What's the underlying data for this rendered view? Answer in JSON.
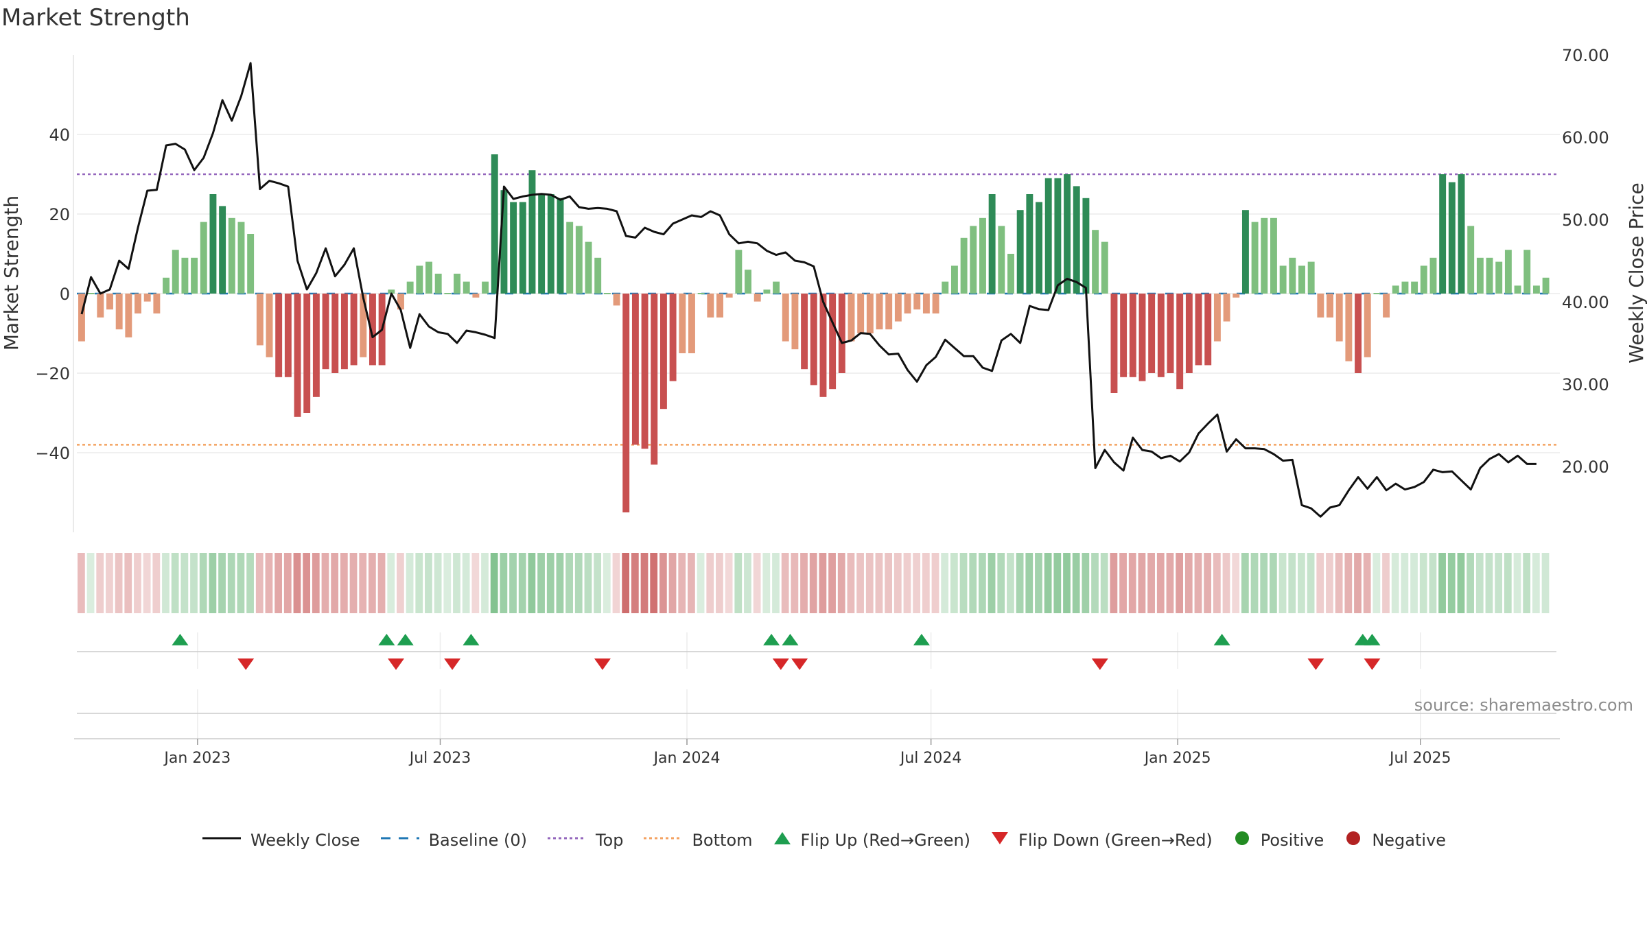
{
  "chart_data": {
    "type": "bar",
    "title": "Market Strength",
    "ylabel_left": "Market Strength",
    "ylabel_right": "Weekly Close Price",
    "source": "source: sharemaestro.com",
    "y_left_range": [
      -60,
      60
    ],
    "y_left_ticks": [
      40,
      20,
      0,
      -20,
      -40
    ],
    "y_left_tick_labels": [
      "40",
      "20",
      "0",
      "−20",
      "−40"
    ],
    "y_right_range": [
      12,
      70
    ],
    "y_right_ticks": [
      70,
      60,
      50,
      40,
      30,
      20
    ],
    "y_right_tick_labels": [
      "70.00",
      "60.00",
      "50.00",
      "40.00",
      "30.00",
      "20.00"
    ],
    "x_start": "2022-10-03",
    "x_end": "2025-10-13",
    "x_ticks": [
      {
        "date": "2023-01-01",
        "label": "Jan 2023"
      },
      {
        "date": "2023-07-01",
        "label": "Jul 2023"
      },
      {
        "date": "2024-01-01",
        "label": "Jan 2024"
      },
      {
        "date": "2024-07-01",
        "label": "Jul 2024"
      },
      {
        "date": "2025-01-01",
        "label": "Jan 2025"
      },
      {
        "date": "2025-07-01",
        "label": "Jul 2025"
      }
    ],
    "top_line": 30,
    "bottom_line": -38,
    "bar_values": [
      -12,
      0,
      -6,
      -4,
      -9,
      -11,
      -5,
      -2,
      -5,
      4,
      11,
      9,
      9,
      18,
      25,
      22,
      19,
      18,
      15,
      -13,
      -16,
      -21,
      -21,
      -31,
      -30,
      -26,
      -19,
      -20,
      -19,
      -18,
      -16,
      -18,
      -18,
      1,
      -4,
      3,
      7,
      8,
      5,
      0,
      5,
      3,
      -1,
      3,
      35,
      26,
      23,
      23,
      31,
      25,
      25,
      24,
      18,
      17,
      13,
      9,
      0,
      -3,
      -55,
      -38,
      -39,
      -43,
      -29,
      -22,
      -15,
      -15,
      0,
      -6,
      -6,
      -1,
      11,
      6,
      -2,
      1,
      3,
      -12,
      -14,
      -19,
      -23,
      -26,
      -24,
      -20,
      -12,
      -10,
      -10,
      -9,
      -9,
      -7,
      -5,
      -4,
      -5,
      -5,
      3,
      7,
      14,
      17,
      19,
      25,
      17,
      10,
      21,
      25,
      23,
      29,
      29,
      30,
      27,
      24,
      16,
      13,
      -25,
      -21,
      -21,
      -22,
      -20,
      -21,
      -20,
      -24,
      -20,
      -18,
      -18,
      -12,
      -7,
      -1,
      21,
      18,
      19,
      19,
      7,
      9,
      7,
      8,
      -6,
      -6,
      -12,
      -17,
      -20,
      -16,
      0,
      -6,
      2,
      3,
      3,
      7,
      9,
      30,
      28,
      30,
      17,
      9,
      9,
      8,
      11,
      2,
      11,
      2,
      4
    ],
    "bar_colors": {
      "strong_positive": "#2e8b57",
      "positive": "#7fbf7f",
      "strong_negative": "#c85050",
      "negative": "#e39a7a"
    },
    "close_values": [
      38.5,
      43,
      41,
      41.5,
      45,
      44,
      49,
      53.5,
      53.6,
      59,
      59.2,
      58.5,
      56,
      57.5,
      60.5,
      64.5,
      62,
      65,
      69,
      53.7,
      54.7,
      54.4,
      54,
      45,
      41.5,
      43.5,
      46.5,
      43.1,
      44.5,
      46.5,
      40.5,
      35.7,
      36.6,
      41,
      39,
      34.4,
      38.5,
      37,
      36.3,
      36.1,
      35,
      36.5,
      36.3,
      36,
      35.6,
      54,
      52.5,
      52.8,
      53,
      53.1,
      53,
      52.4,
      52.8,
      51.5,
      51.3,
      51.4,
      51.3,
      51,
      48,
      47.8,
      49,
      48.5,
      48.2,
      49.5,
      50,
      50.5,
      50.3,
      51,
      50.5,
      48.2,
      47.1,
      47.3,
      47.1,
      46.2,
      45.7,
      46,
      45,
      44.8,
      44.3,
      40,
      37.5,
      35,
      35.3,
      36.2,
      36.1,
      34.7,
      33.6,
      33.7,
      31.7,
      30.3,
      32.3,
      33.3,
      35.4,
      34.4,
      33.4,
      33.4,
      32,
      31.6,
      35.3,
      36.1,
      35,
      39.5,
      39.1,
      39,
      42,
      42.8,
      42.4,
      41.7,
      19.8,
      22,
      20.5,
      19.5,
      23.5,
      22,
      21.8,
      21,
      21.3,
      20.6,
      21.7,
      24,
      25.2,
      26.3,
      21.8,
      23.3,
      22.2,
      22.2,
      22.1,
      21.5,
      20.7,
      20.8,
      15.3,
      14.9,
      13.9,
      15,
      15.3,
      17.1,
      18.7,
      17.3,
      18.7,
      17.1,
      17.9,
      17.2,
      17.5,
      18.1,
      19.6,
      19.3,
      19.4,
      18.3,
      17.2,
      19.8,
      20.9,
      21.5,
      20.5,
      21.3,
      20.3,
      20.3
    ],
    "flip_up_dates": [
      "2022-12-19",
      "2023-05-22",
      "2023-06-05",
      "2023-07-24",
      "2024-03-04",
      "2024-03-18",
      "2024-06-24",
      "2025-02-03",
      "2025-05-19",
      "2025-05-26"
    ],
    "flip_down_dates": [
      "2023-02-06",
      "2023-05-29",
      "2023-07-10",
      "2023-10-30",
      "2024-03-11",
      "2024-03-25",
      "2024-11-04",
      "2025-04-14",
      "2025-05-26"
    ],
    "legend": [
      {
        "key": "weekly-close",
        "label": "Weekly Close"
      },
      {
        "key": "baseline",
        "label": "Baseline (0)"
      },
      {
        "key": "top",
        "label": "Top"
      },
      {
        "key": "bottom",
        "label": "Bottom"
      },
      {
        "key": "flip-up",
        "label": "Flip Up (Red→Green)"
      },
      {
        "key": "flip-down",
        "label": "Flip Down (Green→Red)"
      },
      {
        "key": "positive",
        "label": "Positive"
      },
      {
        "key": "negative",
        "label": "Negative"
      }
    ],
    "colors": {
      "close_line": "#111111",
      "baseline": "#1f77b4",
      "top": "#9467bd",
      "bottom": "#f4a261",
      "flip_up": "#1e9e50",
      "flip_down": "#d62728",
      "positive_dot": "#228b22",
      "negative_dot": "#b22222"
    }
  }
}
